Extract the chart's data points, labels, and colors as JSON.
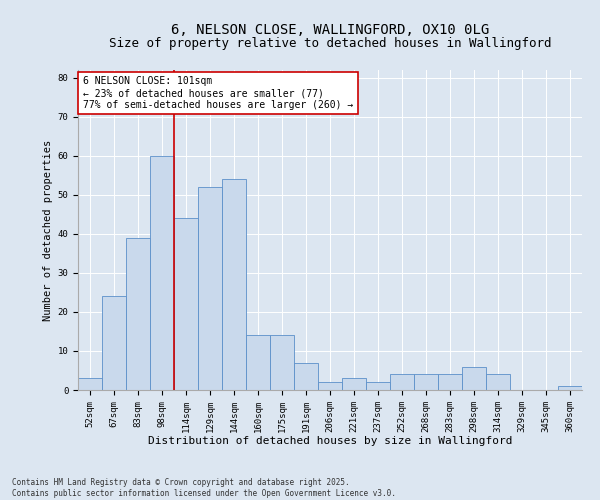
{
  "title_line1": "6, NELSON CLOSE, WALLINGFORD, OX10 0LG",
  "title_line2": "Size of property relative to detached houses in Wallingford",
  "xlabel": "Distribution of detached houses by size in Wallingford",
  "ylabel": "Number of detached properties",
  "categories": [
    "52sqm",
    "67sqm",
    "83sqm",
    "98sqm",
    "114sqm",
    "129sqm",
    "144sqm",
    "160sqm",
    "175sqm",
    "191sqm",
    "206sqm",
    "221sqm",
    "237sqm",
    "252sqm",
    "268sqm",
    "283sqm",
    "298sqm",
    "314sqm",
    "329sqm",
    "345sqm",
    "360sqm"
  ],
  "values": [
    3,
    24,
    39,
    60,
    44,
    52,
    54,
    14,
    14,
    7,
    2,
    3,
    2,
    4,
    4,
    4,
    6,
    4,
    0,
    0,
    1
  ],
  "bar_color": "#c9d9ec",
  "bar_edge_color": "#5b8fc9",
  "vline_x": 3.5,
  "vline_color": "#cc0000",
  "annotation_text": "6 NELSON CLOSE: 101sqm\n← 23% of detached houses are smaller (77)\n77% of semi-detached houses are larger (260) →",
  "annotation_box_color": "#ffffff",
  "annotation_box_edge": "#cc0000",
  "ylim": [
    0,
    82
  ],
  "yticks": [
    0,
    10,
    20,
    30,
    40,
    50,
    60,
    70,
    80
  ],
  "background_color": "#dce6f1",
  "plot_bg_color": "#dce6f1",
  "footer_line1": "Contains HM Land Registry data © Crown copyright and database right 2025.",
  "footer_line2": "Contains public sector information licensed under the Open Government Licence v3.0.",
  "title_fontsize": 10,
  "subtitle_fontsize": 9,
  "xlabel_fontsize": 8,
  "ylabel_fontsize": 7.5,
  "tick_fontsize": 6.5,
  "annotation_fontsize": 7,
  "footer_fontsize": 5.5
}
